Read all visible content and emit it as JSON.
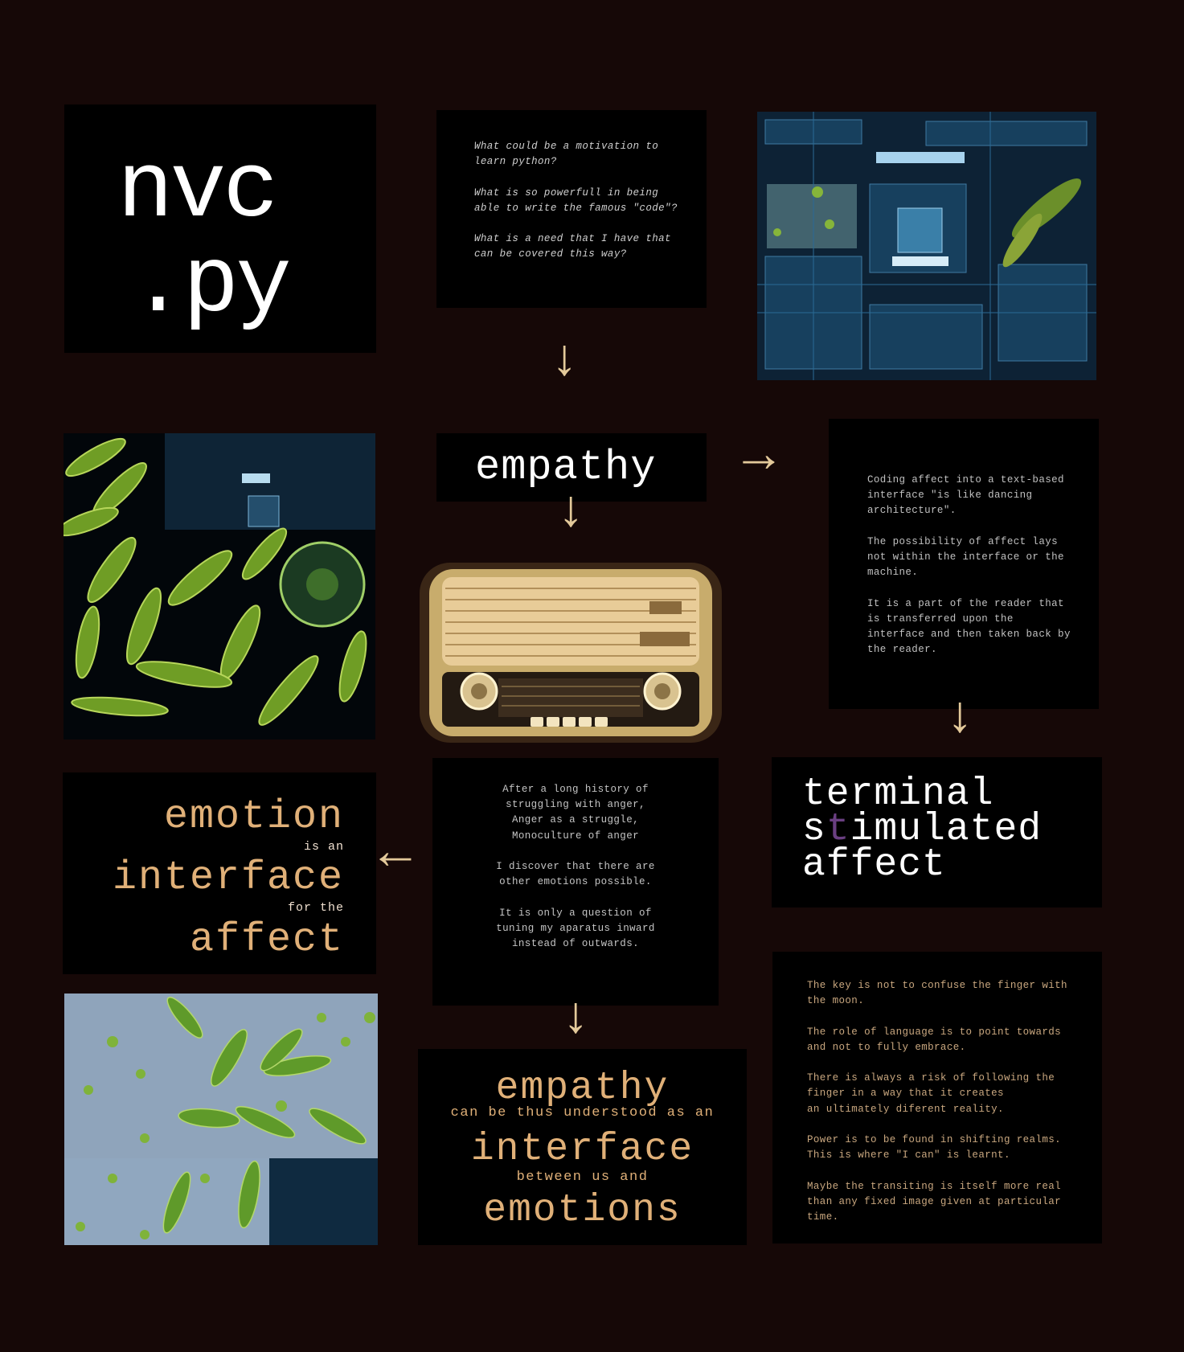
{
  "title": {
    "line1": "nvc",
    "line2": ".py"
  },
  "questions": {
    "text": "What could be a motivation to learn python?\n\nWhat is so powerfull in being able to write the famous \"code\"?\n\nWhat is a need that I have that can be covered this way?"
  },
  "empathy_top": {
    "word": "empathy"
  },
  "coding_affect": {
    "text": "Coding affect into a text-based interface \"is like dancing architecture\".\n\nThe possibility of affect lays not within the interface or the machine.\n\nIt is a part of the reader that is transferred upon the interface and then taken back by the reader."
  },
  "history": {
    "text": "After a long history of\nstruggling with anger,\nAnger as a struggle,\nMonoculture of anger\n\nI discover that there are\nother emotions possible.\n\nIt is only a question of\ntuning my aparatus inward\ninstead of outwards."
  },
  "emotion_box": {
    "emotion": "emotion",
    "is_an": "is an",
    "interface": "interface",
    "for_the": "for the",
    "affect": "affect"
  },
  "terminal": {
    "line1": "terminal",
    "line2_a": "s",
    "line2_b": "t",
    "line2_c": "imulated",
    "line3": "affect"
  },
  "finger_moon": {
    "text": "The key is not to confuse the finger with the moon.\n\nThe role of language is to point towards and not to fully embrace.\n\nThere is always a risk of following the finger in a way that it creates\nan ultimately diferent reality.\n\nPower is to be found in shifting realms.\nThis is where \"I can\" is learnt.\n\nMaybe the transiting is itself more real than any fixed image given at particular time."
  },
  "empathy_bottom": {
    "empathy": "empathy",
    "understood": "can be thus understood as an",
    "interface": "interface",
    "between": "between us and",
    "emotions": "emotions"
  },
  "arrows": {
    "down": "↓",
    "right": "→",
    "left": "←"
  },
  "colors": {
    "background": "#160807",
    "accent": "#e3c99a",
    "orange_text": "#e0b078",
    "purple_letter": "#6a3f82"
  }
}
